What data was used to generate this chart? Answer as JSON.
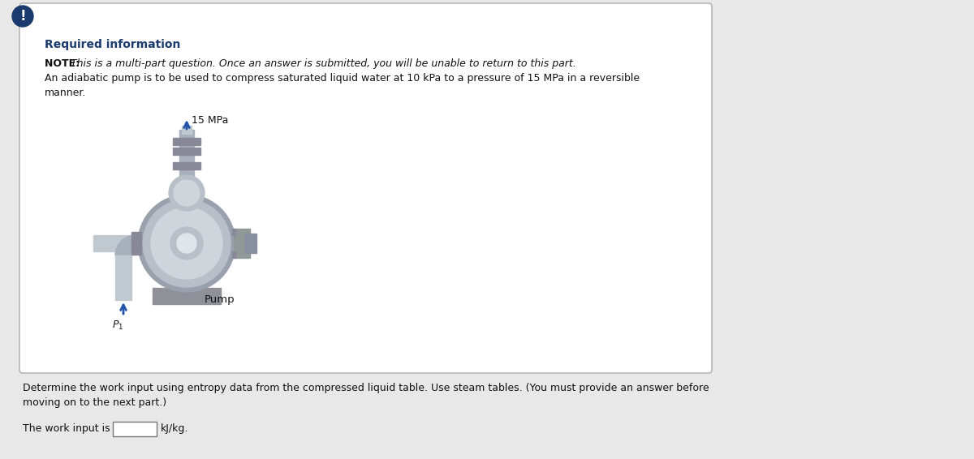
{
  "bg_color": "#e8e8e8",
  "box_color": "#ffffff",
  "box_border_color": "#aaaaaa",
  "title_text": "Required information",
  "title_color": "#1a3a6e",
  "note_bold": "NOTE: ",
  "note_italic": "This is a multi-part question. Once an answer is submitted, you will be unable to return to this part.",
  "note_line2": "An adiabatic pump is to be used to compress saturated liquid water at 10 kPa to a pressure of 15 MPa in a reversible",
  "note_line3": "manner.",
  "label_15mpa": "15 MPa",
  "label_pump": "Pump",
  "label_p1": "$P_1$",
  "question_line1": "Determine the work input using entropy data from the compressed liquid table. Use steam tables. (You must provide an answer before",
  "question_line2": "moving on to the next part.)",
  "answer_label": "The work input is",
  "answer_unit": "kJ/kg.",
  "exclamation_bg": "#1a3a6e",
  "font_size_title": 10,
  "font_size_note": 9,
  "font_size_question": 9,
  "arrow_color": "#2255aa",
  "pump_colors": {
    "body_outer": "#9aa0ac",
    "body_mid": "#b8bfc8",
    "body_light": "#d0d5dc",
    "body_highlight": "#e0e5ea",
    "pipe_dark": "#8890a0",
    "pipe_mid": "#a8b0bc",
    "pipe_light": "#c0c8d0",
    "base": "#909098",
    "flange": "#888898",
    "right_attach": "#909898"
  }
}
